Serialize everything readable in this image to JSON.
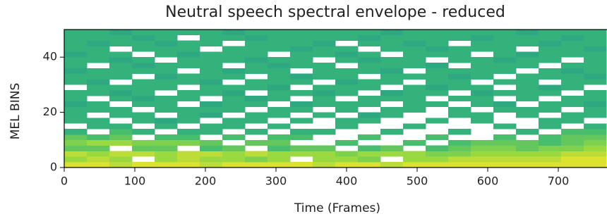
{
  "chart_data": {
    "type": "heatmap",
    "title": "Neutral speech spectral envelope - reduced",
    "xlabel": "Time (Frames)",
    "ylabel": "MEL BINS",
    "xlim": [
      0,
      768
    ],
    "ylim": [
      0,
      50
    ],
    "xticks": [
      0,
      100,
      200,
      300,
      400,
      500,
      600,
      700
    ],
    "yticks": [
      0,
      20,
      40
    ],
    "colormap": [
      "#21918c",
      "#35b779",
      "#90d743",
      "#fde725"
    ],
    "x": [
      0,
      32,
      64,
      96,
      128,
      160,
      192,
      224,
      256,
      288,
      320,
      352,
      384,
      416,
      448,
      480,
      512,
      544,
      576,
      608,
      640,
      672,
      704,
      736
    ],
    "y": [
      0,
      2,
      4,
      6,
      8,
      10,
      12,
      14,
      16,
      18,
      20,
      22,
      24,
      26,
      28,
      30,
      32,
      34,
      36,
      38,
      40,
      42,
      44,
      46,
      48
    ],
    "values": [
      [
        0.9,
        0.9,
        0.8,
        0.9,
        0.9,
        0.9,
        0.8,
        0.9,
        0.9,
        0.9,
        0.9,
        0.8,
        0.9,
        0.9,
        0.8,
        0.9,
        0.9,
        0.9,
        0.9,
        0.9,
        0.9,
        0.9,
        0.9,
        0.9
      ],
      [
        0.7,
        0.8,
        0.7,
        null,
        0.7,
        0.8,
        0.7,
        0.7,
        0.6,
        0.7,
        null,
        0.7,
        0.7,
        0.6,
        null,
        0.7,
        0.7,
        0.8,
        0.8,
        0.8,
        0.8,
        0.8,
        0.9,
        0.9
      ],
      [
        0.8,
        0.7,
        0.8,
        0.8,
        0.7,
        0.8,
        0.8,
        0.7,
        0.8,
        0.7,
        0.7,
        0.7,
        0.6,
        0.7,
        0.7,
        0.7,
        0.6,
        0.6,
        0.7,
        0.7,
        0.7,
        0.7,
        0.8,
        0.8
      ],
      [
        0.5,
        0.5,
        null,
        0.5,
        0.5,
        null,
        0.4,
        0.5,
        null,
        0.4,
        0.5,
        0.5,
        null,
        0.4,
        0.5,
        null,
        0.4,
        0.5,
        0.6,
        0.6,
        0.5,
        0.6,
        0.6,
        0.7
      ],
      [
        0.6,
        0.7,
        0.7,
        0.6,
        0.6,
        0.6,
        0.5,
        null,
        0.5,
        0.5,
        null,
        null,
        0.4,
        null,
        null,
        0.4,
        null,
        0.4,
        0.5,
        0.5,
        0.5,
        0.4,
        0.5,
        0.6
      ],
      [
        0.5,
        0.4,
        0.5,
        null,
        0.4,
        0.4,
        null,
        0.4,
        null,
        0.4,
        0.4,
        null,
        null,
        0.4,
        null,
        null,
        0.4,
        null,
        null,
        0.4,
        null,
        0.4,
        0.5,
        0.5
      ],
      [
        0.3,
        null,
        0.4,
        0.3,
        null,
        0.3,
        0.3,
        null,
        0.3,
        null,
        0.3,
        0.3,
        null,
        null,
        0.3,
        null,
        null,
        0.3,
        null,
        null,
        0.3,
        null,
        0.4,
        0.4
      ],
      [
        null,
        0.3,
        0.3,
        null,
        0.3,
        null,
        0.3,
        0.3,
        null,
        0.3,
        null,
        null,
        0.3,
        null,
        null,
        0.3,
        null,
        null,
        null,
        0.3,
        null,
        0.3,
        null,
        0.3
      ],
      [
        0.3,
        0.3,
        null,
        0.3,
        0.2,
        0.3,
        null,
        0.3,
        0.3,
        null,
        0.3,
        null,
        0.3,
        0.3,
        null,
        null,
        0.3,
        null,
        0.3,
        null,
        null,
        0.3,
        0.3,
        null
      ],
      [
        0.3,
        null,
        0.3,
        0.3,
        null,
        0.3,
        0.2,
        null,
        0.3,
        0.3,
        null,
        0.3,
        null,
        0.2,
        0.3,
        null,
        null,
        0.3,
        0.3,
        null,
        0.3,
        null,
        0.3,
        0.3
      ],
      [
        0.3,
        0.3,
        0.3,
        null,
        0.3,
        0.3,
        0.3,
        0.3,
        null,
        0.3,
        0.3,
        null,
        0.3,
        null,
        0.3,
        0.3,
        null,
        0.3,
        null,
        0.3,
        0.3,
        0.3,
        null,
        0.3
      ],
      [
        0.2,
        0.3,
        null,
        0.3,
        0.3,
        null,
        0.2,
        0.3,
        0.3,
        null,
        0.2,
        0.3,
        0.3,
        0.3,
        null,
        0.3,
        0.3,
        null,
        0.3,
        0.2,
        null,
        0.3,
        0.3,
        0.2
      ],
      [
        0.3,
        null,
        0.3,
        0.2,
        0.3,
        0.3,
        null,
        0.3,
        0.2,
        0.3,
        null,
        0.3,
        null,
        0.3,
        0.3,
        0.3,
        null,
        0.3,
        0.3,
        null,
        0.3,
        null,
        0.3,
        0.3
      ],
      [
        0.3,
        0.3,
        0.2,
        0.3,
        null,
        0.3,
        0.3,
        0.2,
        null,
        0.3,
        0.3,
        0.2,
        0.3,
        null,
        0.2,
        0.3,
        0.3,
        null,
        0.2,
        0.3,
        0.3,
        0.3,
        null,
        0.3
      ],
      [
        null,
        0.3,
        0.3,
        0.3,
        0.3,
        null,
        0.3,
        0.3,
        0.3,
        0.2,
        null,
        0.3,
        0.3,
        0.3,
        null,
        0.3,
        0.2,
        0.3,
        0.3,
        null,
        0.3,
        0.2,
        0.3,
        null
      ],
      [
        0.3,
        0.2,
        null,
        0.3,
        0.3,
        0.3,
        0.2,
        null,
        0.3,
        0.3,
        0.3,
        null,
        0.2,
        0.3,
        0.3,
        null,
        0.3,
        0.3,
        null,
        0.3,
        0.3,
        null,
        0.3,
        0.3
      ],
      [
        0.3,
        0.3,
        0.3,
        null,
        0.2,
        0.3,
        0.3,
        0.3,
        null,
        0.3,
        0.2,
        0.3,
        0.3,
        null,
        0.3,
        0.3,
        0.3,
        0.2,
        0.3,
        null,
        0.3,
        0.3,
        0.3,
        0.2
      ],
      [
        0.2,
        0.3,
        0.3,
        0.3,
        0.3,
        null,
        0.3,
        0.2,
        0.3,
        0.3,
        null,
        0.3,
        0.3,
        0.3,
        0.2,
        null,
        0.3,
        0.3,
        0.3,
        0.3,
        null,
        0.3,
        0.2,
        0.3
      ],
      [
        0.3,
        null,
        0.3,
        0.2,
        0.3,
        0.3,
        0.3,
        null,
        0.3,
        0.2,
        0.3,
        0.3,
        null,
        0.3,
        0.3,
        0.3,
        0.2,
        null,
        0.3,
        0.3,
        0.3,
        null,
        0.3,
        0.3
      ],
      [
        0.3,
        0.3,
        0.2,
        0.3,
        null,
        0.3,
        0.3,
        0.3,
        0.2,
        0.3,
        0.3,
        null,
        0.3,
        0.2,
        0.3,
        0.3,
        null,
        0.3,
        0.3,
        0.2,
        0.3,
        0.3,
        null,
        0.3
      ],
      [
        0.2,
        0.3,
        0.3,
        null,
        0.3,
        0.2,
        0.3,
        0.3,
        0.3,
        null,
        0.3,
        0.3,
        0.2,
        0.3,
        null,
        0.3,
        0.3,
        0.3,
        null,
        0.3,
        0.2,
        0.3,
        0.3,
        0.3
      ],
      [
        0.3,
        0.3,
        null,
        0.3,
        0.3,
        0.3,
        null,
        0.3,
        0.3,
        0.3,
        0.2,
        0.3,
        0.3,
        null,
        0.3,
        0.3,
        0.2,
        0.3,
        0.3,
        0.3,
        null,
        0.3,
        0.3,
        0.2
      ],
      [
        0.3,
        0.2,
        0.3,
        0.3,
        0.2,
        0.3,
        0.3,
        null,
        0.3,
        0.3,
        0.3,
        0.2,
        null,
        0.3,
        0.3,
        0.2,
        0.3,
        null,
        0.3,
        0.3,
        0.3,
        0.2,
        0.3,
        0.3
      ],
      [
        0.3,
        0.3,
        0.3,
        0.2,
        0.3,
        null,
        0.3,
        0.3,
        0.2,
        0.3,
        0.3,
        0.3,
        0.3,
        0.2,
        0.3,
        0.3,
        0.3,
        0.3,
        0.2,
        0.3,
        0.3,
        0.3,
        0.2,
        0.3
      ],
      [
        0.3,
        0.3,
        0.2,
        0.3,
        0.3,
        0.3,
        0.3,
        0.2,
        0.3,
        0.3,
        0.3,
        0.3,
        0.3,
        0.3,
        0.2,
        0.3,
        0.3,
        0.3,
        0.3,
        0.3,
        0.2,
        0.3,
        0.3,
        0.3
      ]
    ]
  }
}
